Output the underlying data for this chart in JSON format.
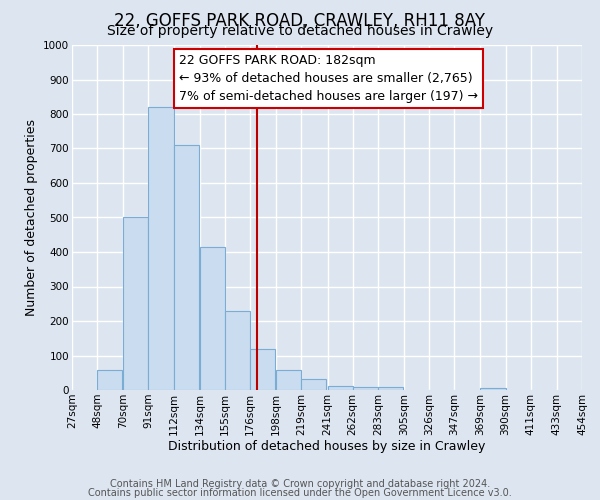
{
  "title": "22, GOFFS PARK ROAD, CRAWLEY, RH11 8AY",
  "subtitle": "Size of property relative to detached houses in Crawley",
  "xlabel": "Distribution of detached houses by size in Crawley",
  "ylabel": "Number of detached properties",
  "bar_left_edges": [
    27,
    48,
    70,
    91,
    112,
    134,
    155,
    176,
    198,
    219,
    241,
    262,
    283,
    305,
    326,
    347,
    369,
    390,
    411,
    433
  ],
  "bar_heights": [
    0,
    57,
    500,
    820,
    710,
    415,
    230,
    120,
    57,
    33,
    12,
    10,
    8,
    0,
    0,
    0,
    5,
    0,
    0,
    0
  ],
  "bin_width": 21,
  "tick_labels": [
    "27sqm",
    "48sqm",
    "70sqm",
    "91sqm",
    "112sqm",
    "134sqm",
    "155sqm",
    "176sqm",
    "198sqm",
    "219sqm",
    "241sqm",
    "262sqm",
    "283sqm",
    "305sqm",
    "326sqm",
    "347sqm",
    "369sqm",
    "390sqm",
    "411sqm",
    "433sqm",
    "454sqm"
  ],
  "tick_positions": [
    27,
    48,
    70,
    91,
    112,
    134,
    155,
    176,
    198,
    219,
    241,
    262,
    283,
    305,
    326,
    347,
    369,
    390,
    411,
    433,
    454
  ],
  "bar_color": "#c9dcf0",
  "bar_edge_color": "#7badd4",
  "vline_x": 182,
  "vline_color": "#bb0000",
  "ylim": [
    0,
    1000
  ],
  "yticks": [
    0,
    100,
    200,
    300,
    400,
    500,
    600,
    700,
    800,
    900,
    1000
  ],
  "annotation_line1": "22 GOFFS PARK ROAD: 182sqm",
  "annotation_line2": "← 93% of detached houses are smaller (2,765)",
  "annotation_line3": "7% of semi-detached houses are larger (197) →",
  "annotation_box_color": "#ffffff",
  "annotation_box_edge_color": "#cc0000",
  "footer_line1": "Contains HM Land Registry data © Crown copyright and database right 2024.",
  "footer_line2": "Contains public sector information licensed under the Open Government Licence v3.0.",
  "background_color": "#dde5f0",
  "plot_bg_color": "#dde5f0",
  "grid_color": "#ffffff",
  "title_fontsize": 12,
  "subtitle_fontsize": 10,
  "axis_label_fontsize": 9,
  "tick_fontsize": 7.5,
  "annotation_fontsize": 9,
  "footer_fontsize": 7
}
